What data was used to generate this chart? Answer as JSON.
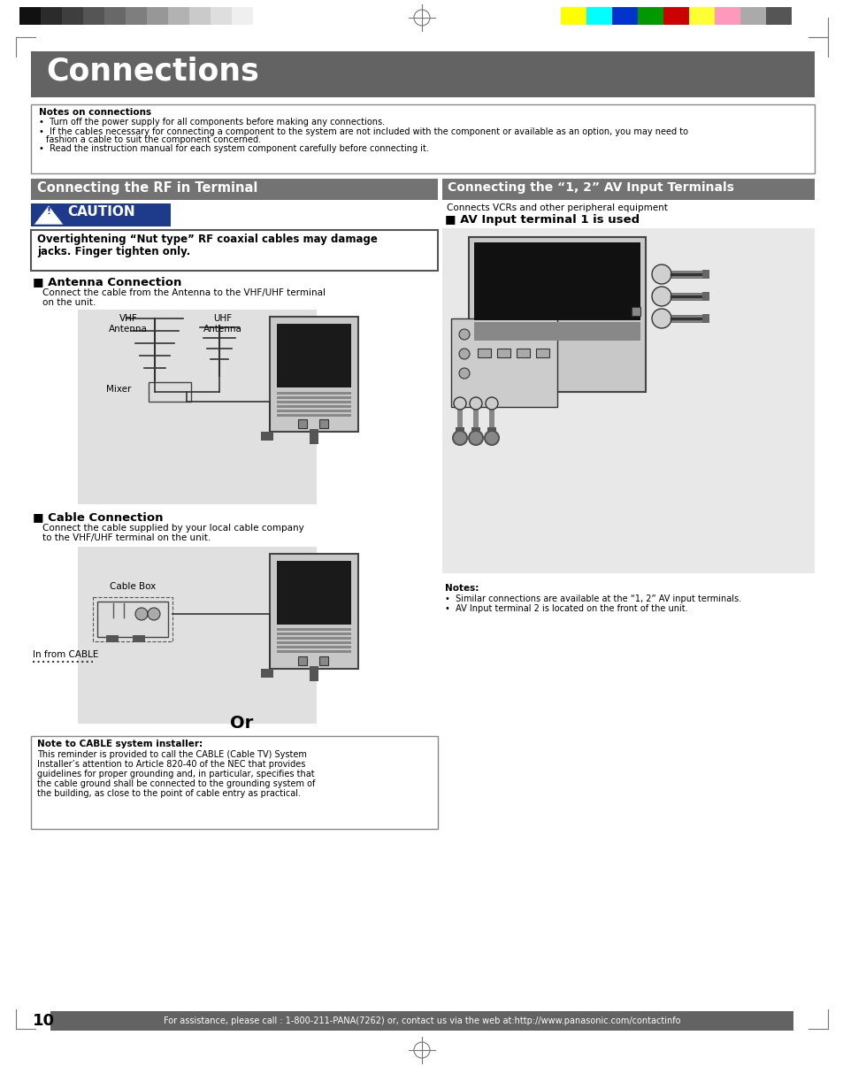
{
  "page_bg": "#ffffff",
  "header_bar_color": "#636363",
  "header_text": "Connections",
  "header_text_color": "#ffffff",
  "notes_title": "Notes on connections",
  "note1": "Turn off the power supply for all components before making any connections.",
  "note2a": "If the cables necessary for connecting a component to the system are not included with the component or available as an option, you may need to",
  "note2b": "fashion a cable to suit the component concerned.",
  "note3": "Read the instruction manual for each system component carefully before connecting it.",
  "left_header_bg": "#737373",
  "left_header_text": "Connecting the RF in Terminal",
  "right_header_bg": "#737373",
  "right_header_text": "Connecting the “1, 2” AV Input Terminals",
  "caution_bg": "#1e3a8a",
  "caution_text": "  CAUTION",
  "caution_box_line1": "Overtightening “Nut type” RF coaxial cables may damage",
  "caution_box_line2": "jacks. Finger tighten only.",
  "antenna_title": "■ Antenna Connection",
  "antenna_desc1": "Connect the cable from the Antenna to the VHF/UHF terminal",
  "antenna_desc2": "on the unit.",
  "vhf_label": "VHF\nAntenna",
  "uhf_label": "UHF\nAntenna",
  "mixer_label": "Mixer",
  "cable_title": "■ Cable Connection",
  "cable_desc1": "Connect the cable supplied by your local cable company",
  "cable_desc2": "to the VHF/UHF terminal on the unit.",
  "cable_box_label": "Cable Box",
  "in_from_cable": "In from CABLE",
  "or_text": "Or",
  "note_cable_title": "Note to CABLE system installer:",
  "note_cable_l1": "This reminder is provided to call the CABLE (Cable TV) System",
  "note_cable_l2": "Installer’s attention to Article 820-40 of the NEC that provides",
  "note_cable_l3": "guidelines for proper grounding and, in particular, specifies that",
  "note_cable_l4": "the cable ground shall be connected to the grounding system of",
  "note_cable_l5": "the building, as close to the point of cable entry as practical.",
  "right_subtitle": "Connects VCRs and other peripheral equipment",
  "av_title": "■ AV Input terminal 1 is used",
  "notes_label": "Notes:",
  "av_note1": "•  Similar connections are available at the “1, 2” AV input terminals.",
  "av_note2": "•  AV Input terminal 2 is located on the front of the unit.",
  "footer_bg": "#636363",
  "footer_text": "For assistance, please call : 1-800-211-PANA(7262) or, contact us via the web at:http://www.panasonic.com/contactinfo",
  "footer_text_color": "#ffffff",
  "page_number": "10",
  "gray_bars_left": [
    "#111111",
    "#2b2b2b",
    "#3e3e3e",
    "#555555",
    "#686868",
    "#7e7e7e",
    "#979797",
    "#b2b2b2",
    "#cacaca",
    "#dedede",
    "#efefef",
    "#ffffff"
  ],
  "color_bars_right": [
    "#ffff00",
    "#00ffff",
    "#0033cc",
    "#009900",
    "#cc0000",
    "#ffff33",
    "#ff99bb",
    "#aaaaaa",
    "#555555"
  ]
}
